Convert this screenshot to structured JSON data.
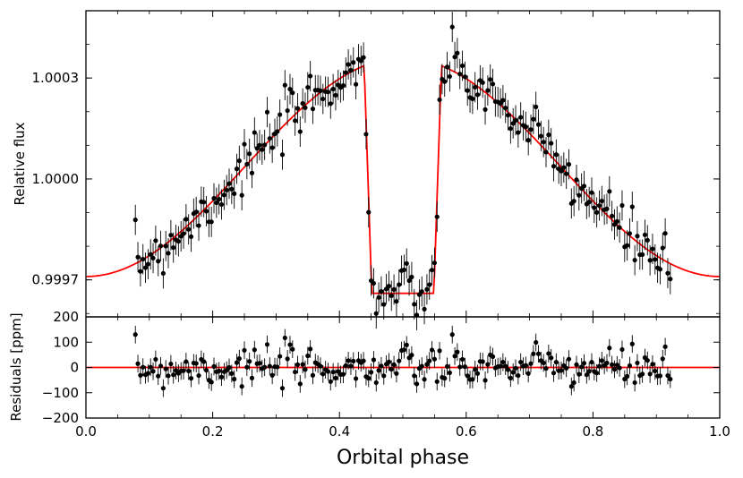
{
  "chart_data": [
    {
      "type": "scatter",
      "panel": "top",
      "title": "",
      "xlabel": "",
      "ylabel": "Relative flux",
      "xlim": [
        0.0,
        1.0
      ],
      "ylim": [
        0.99959,
        1.0005
      ],
      "yticks": [
        0.9997,
        1.0,
        1.0003
      ],
      "ytick_labels": [
        "0.9997",
        "1.0000",
        "1.0003"
      ],
      "xticks": [
        0.0,
        0.2,
        0.4,
        0.6,
        0.8,
        1.0
      ],
      "colors": {
        "data": "#000000",
        "model": "#ff0000"
      },
      "series": [
        {
          "name": "data",
          "marker": "circle",
          "errorbars": true,
          "points": []
        },
        {
          "name": "model",
          "style": "line",
          "points": []
        }
      ]
    },
    {
      "type": "scatter",
      "panel": "bottom",
      "title": "",
      "xlabel": "Orbital phase",
      "ylabel": "Residuals [ppm]",
      "xlim": [
        0.0,
        1.0
      ],
      "ylim": [
        -200,
        200
      ],
      "yticks": [
        -200,
        -100,
        0,
        100,
        200
      ],
      "ytick_labels": [
        "−200",
        "−100",
        "0",
        "100",
        "200"
      ],
      "xticks": [
        0.0,
        0.2,
        0.4,
        0.6,
        0.8,
        1.0
      ],
      "xtick_labels": [
        "0.0",
        "0.2",
        "0.4",
        "0.6",
        "0.8",
        "1.0"
      ],
      "colors": {
        "data": "#000000",
        "zero_line": "#ff0000"
      },
      "series": [
        {
          "name": "residuals",
          "marker": "circle",
          "errorbars": true,
          "points": []
        },
        {
          "name": "zero",
          "style": "line",
          "value": 0
        }
      ]
    }
  ]
}
